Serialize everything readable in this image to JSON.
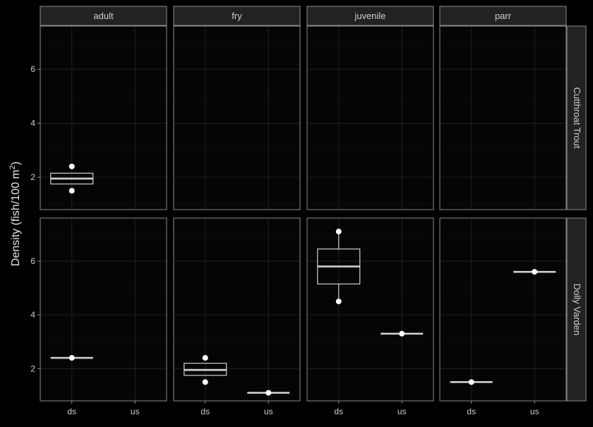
{
  "chart_data": {
    "type": "boxplot",
    "ylabel": "Density (fish/100 m",
    "ylabel_sup": "2",
    "ylabel_close": ")",
    "col_facets": [
      "adult",
      "fry",
      "juvenile",
      "parr"
    ],
    "row_facets": [
      "Cutthroat Trout",
      "Dolly Varden"
    ],
    "categories": [
      "ds",
      "us"
    ],
    "ylim": [
      0.8,
      7.6
    ],
    "yticks": [
      2,
      4,
      6
    ],
    "grid": true,
    "panels": [
      {
        "row": "Cutthroat Trout",
        "col": "adult",
        "boxes": [
          {
            "x": "ds",
            "q1": 1.75,
            "median": 1.95,
            "q3": 2.15,
            "whisker_low": 1.75,
            "whisker_high": 2.15,
            "outliers": [
              1.5,
              2.4
            ]
          }
        ]
      },
      {
        "row": "Cutthroat Trout",
        "col": "fry",
        "boxes": []
      },
      {
        "row": "Cutthroat Trout",
        "col": "juvenile",
        "boxes": []
      },
      {
        "row": "Cutthroat Trout",
        "col": "parr",
        "boxes": []
      },
      {
        "row": "Dolly Varden",
        "col": "adult",
        "boxes": [
          {
            "x": "ds",
            "q1": 2.4,
            "median": 2.4,
            "q3": 2.4,
            "whisker_low": 2.4,
            "whisker_high": 2.4,
            "outliers": [
              2.4
            ]
          }
        ]
      },
      {
        "row": "Dolly Varden",
        "col": "fry",
        "boxes": [
          {
            "x": "ds",
            "q1": 1.75,
            "median": 1.95,
            "q3": 2.2,
            "whisker_low": 1.75,
            "whisker_high": 2.2,
            "outliers": [
              1.5,
              2.4
            ]
          },
          {
            "x": "us",
            "q1": 1.1,
            "median": 1.1,
            "q3": 1.1,
            "whisker_low": 1.1,
            "whisker_high": 1.1,
            "outliers": [
              1.1
            ]
          }
        ]
      },
      {
        "row": "Dolly Varden",
        "col": "juvenile",
        "boxes": [
          {
            "x": "ds",
            "q1": 5.15,
            "median": 5.8,
            "q3": 6.45,
            "whisker_low": 4.5,
            "whisker_high": 7.1,
            "outliers": [
              4.5,
              7.1
            ]
          },
          {
            "x": "us",
            "q1": 3.3,
            "median": 3.3,
            "q3": 3.3,
            "whisker_low": 3.3,
            "whisker_high": 3.3,
            "outliers": [
              3.3
            ]
          }
        ]
      },
      {
        "row": "Dolly Varden",
        "col": "parr",
        "boxes": [
          {
            "x": "ds",
            "q1": 1.5,
            "median": 1.5,
            "q3": 1.5,
            "whisker_low": 1.5,
            "whisker_high": 1.5,
            "outliers": [
              1.5
            ]
          },
          {
            "x": "us",
            "q1": 5.6,
            "median": 5.6,
            "q3": 5.6,
            "whisker_low": 5.6,
            "whisker_high": 5.6,
            "outliers": [
              5.6
            ]
          }
        ]
      }
    ]
  },
  "colors": {
    "background": "#000000",
    "panel": "#050505",
    "strip": "#222222",
    "border": "#8c8c8c",
    "grid_major": "#1f1f1f",
    "grid_minor": "#121212",
    "text": "#cfcfcf",
    "box_line": "#d0d0d0",
    "point": "#ffffff"
  }
}
